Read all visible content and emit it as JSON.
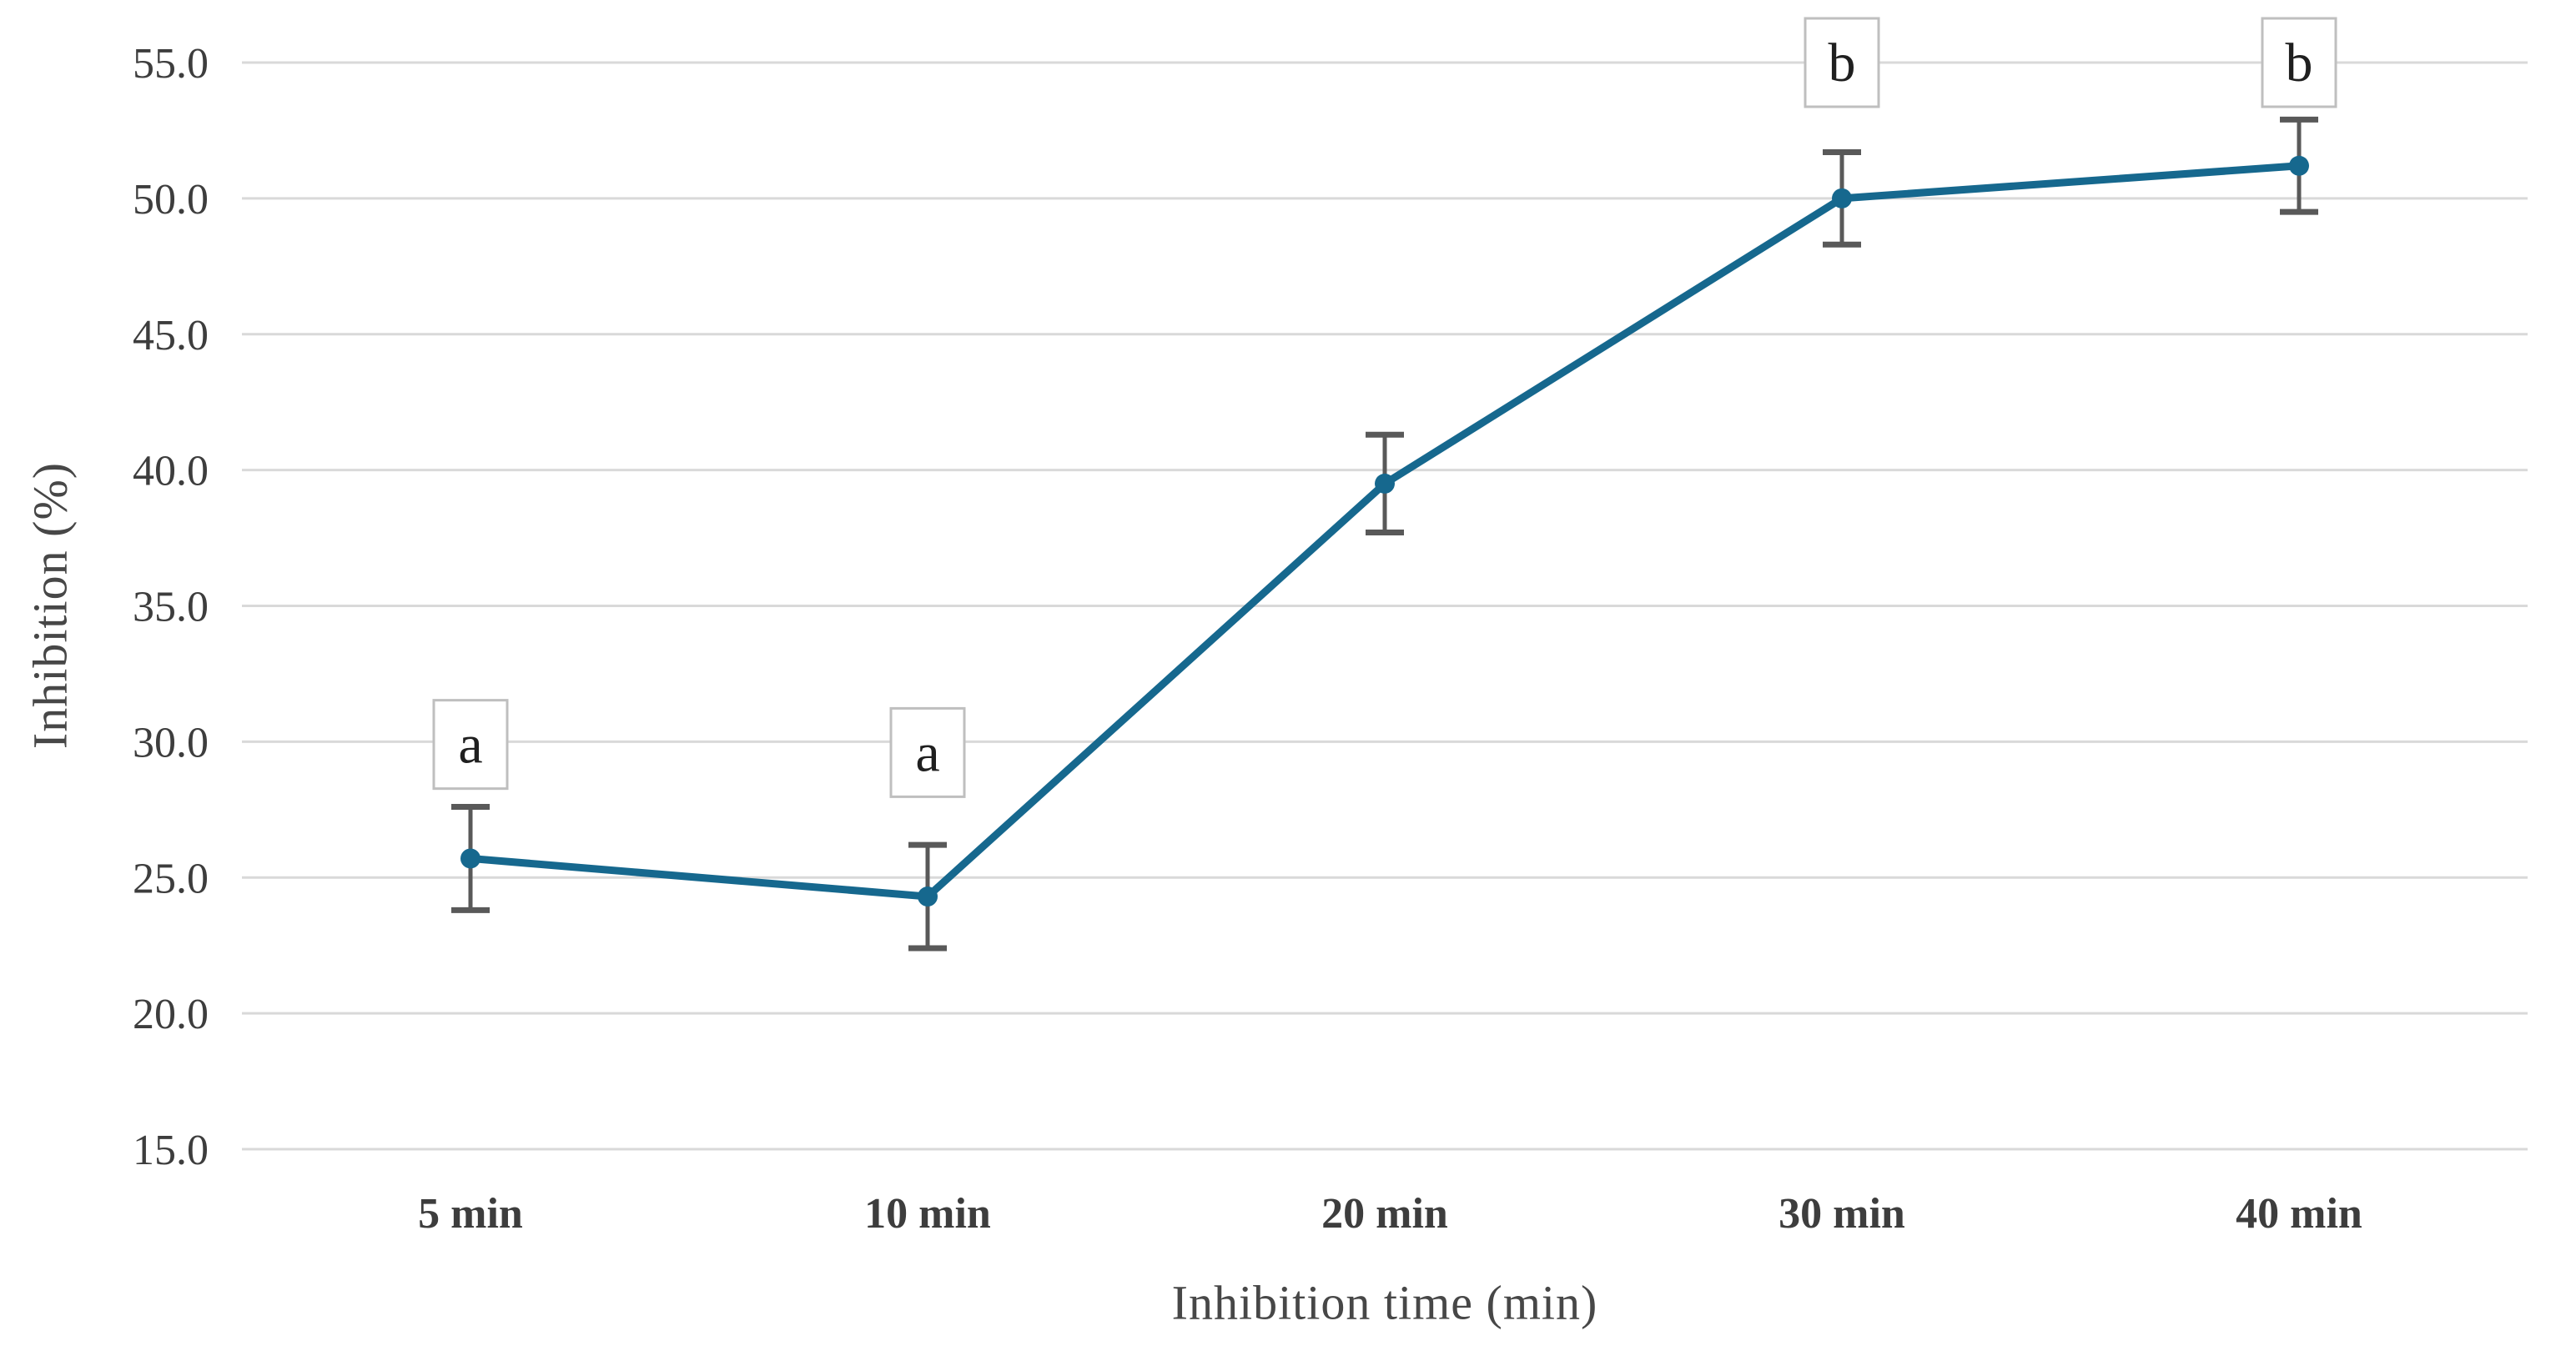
{
  "figure": {
    "background": "#ffffff"
  },
  "chart_data": {
    "type": "line",
    "title": "",
    "xlabel": "Inhibition time (min)",
    "ylabel": "Inhibition (%)",
    "categories": [
      "5 min",
      "10 min",
      "20 min",
      "30 min",
      "40 min"
    ],
    "series": [
      {
        "name": "Inhibition (%)",
        "values": [
          25.7,
          24.3,
          39.5,
          50.0,
          51.2
        ],
        "error_bars": [
          1.9,
          1.9,
          1.8,
          1.7,
          1.7
        ]
      }
    ],
    "point_annotations": [
      {
        "index": 0,
        "text": "a",
        "y": 29.9
      },
      {
        "index": 1,
        "text": "a",
        "y": 29.6
      },
      {
        "index": 3,
        "text": "b",
        "y": 55.0
      },
      {
        "index": 4,
        "text": "b",
        "y": 55.0
      }
    ],
    "ylim": [
      15,
      55
    ],
    "yticks": [
      55,
      50,
      45,
      40,
      35,
      30,
      25,
      20,
      15
    ],
    "ytick_labels": [
      "55.0",
      "50.0",
      "45.0",
      "40.0",
      "35.0",
      "30.0",
      "25.0",
      "20.0",
      "15.0"
    ],
    "grid": "horizontal",
    "legend": "none",
    "colors": {
      "line": "#16688e",
      "marker": "#16688e",
      "error_bar": "#595959",
      "gridline": "#d9d9d9",
      "tick_text": "#3d3d3d",
      "annotation_box_fill": "#ffffff",
      "annotation_box_border": "#bfbfbf",
      "annotation_text": "#1f1f1f",
      "axis_title_text": "#474747"
    }
  }
}
